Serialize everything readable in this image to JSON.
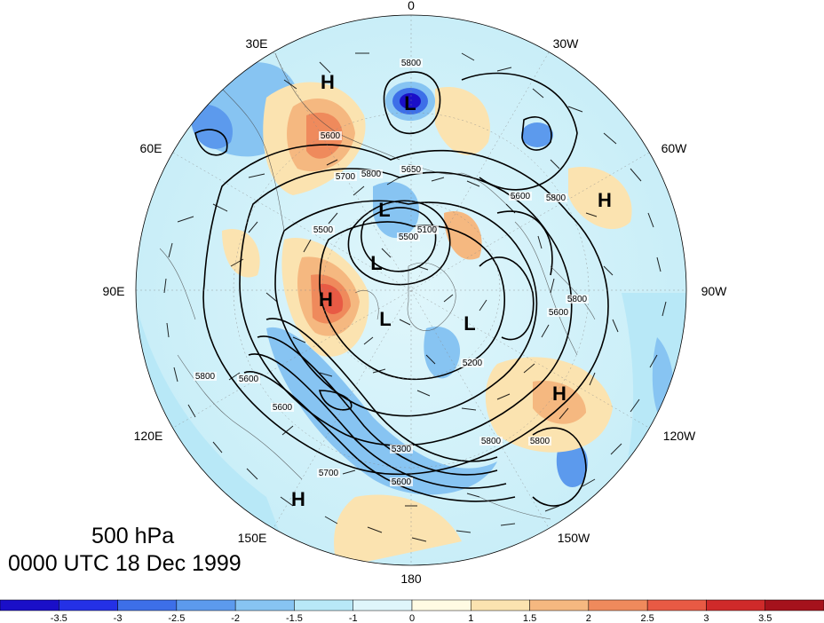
{
  "map": {
    "projection": "north-polar-stereographic",
    "colormap": [
      "#1a0fc8",
      "#2431e6",
      "#3d6fe8",
      "#5c9aed",
      "#87c4f2",
      "#b8e8f7",
      "#dff6fb",
      "#fffbe3",
      "#fbe3b0",
      "#f5b880",
      "#ef8a5c",
      "#e85a44",
      "#cf2a2a",
      "#a5121c"
    ],
    "longitude_labels": [
      {
        "text": "0"
      },
      {
        "text": "30W"
      },
      {
        "text": "60W"
      },
      {
        "text": "90W"
      },
      {
        "text": "120W"
      },
      {
        "text": "150W"
      },
      {
        "text": "180"
      },
      {
        "text": "150E"
      },
      {
        "text": "120E"
      },
      {
        "text": "90E"
      },
      {
        "text": "60E"
      },
      {
        "text": "30E"
      }
    ],
    "pressure_centers": [
      {
        "type": "H"
      },
      {
        "type": "L"
      },
      {
        "type": "H"
      },
      {
        "type": "L"
      },
      {
        "type": "L"
      },
      {
        "type": "H"
      },
      {
        "type": "L"
      },
      {
        "type": "L"
      },
      {
        "type": "H"
      },
      {
        "type": "H"
      }
    ],
    "contour_labels": [
      "5800",
      "5600",
      "5700",
      "5800",
      "5500",
      "5650",
      "5600",
      "5800",
      "5100",
      "5500",
      "5800",
      "5600",
      "5600",
      "5200",
      "5800",
      "5800",
      "5300",
      "5700",
      "5600",
      "5600",
      "5800"
    ]
  },
  "title": {
    "level": "500 hPa",
    "time": "0000 UTC 18 Dec 1999"
  },
  "colorbar": {
    "ticks": [
      "-3.5",
      "-3",
      "-2.5",
      "-2",
      "-1.5",
      "-1",
      "0",
      "1",
      "1.5",
      "2",
      "2.5",
      "3",
      "3.5"
    ]
  }
}
